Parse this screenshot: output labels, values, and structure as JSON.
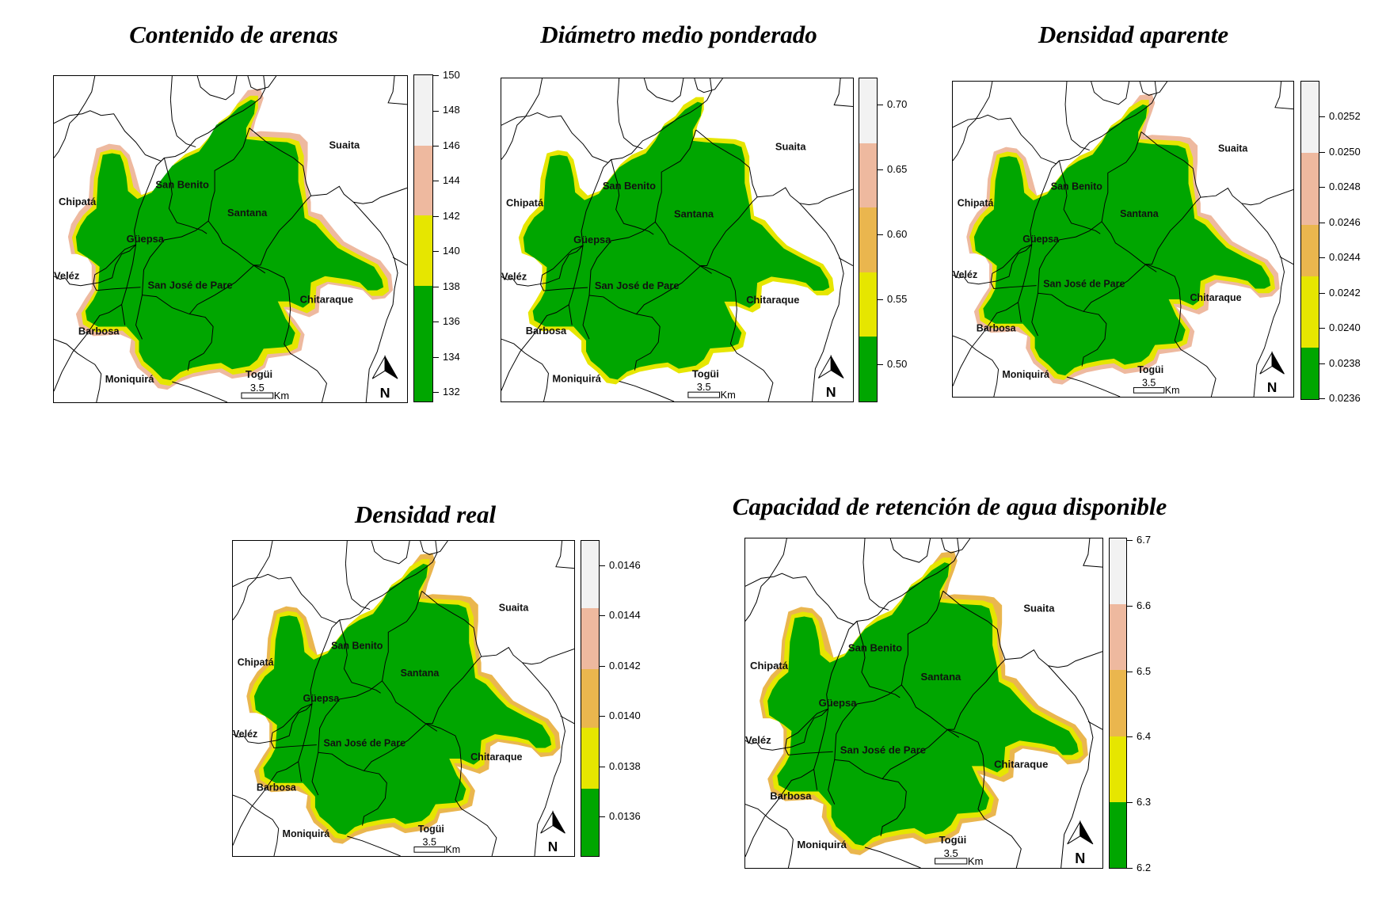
{
  "colors": {
    "green": "#00A600",
    "yellow": "#E6E600",
    "orange": "#EAB64E",
    "peach": "#EEB99F",
    "white": "#F2F2F2"
  },
  "panels": [
    {
      "title": "Contenido de arenas",
      "legend_classes": [
        "#F2F2F2",
        "#EEB99F",
        "#E6E600",
        "#00A600"
      ],
      "legend_weights": [
        2,
        2,
        2,
        3.3
      ],
      "ticks": [
        "150",
        "148",
        "146",
        "144",
        "142",
        "140",
        "138",
        "136",
        "134",
        "132"
      ]
    },
    {
      "title": "Diámetro medio ponderado",
      "legend_classes": [
        "#F2F2F2",
        "#EEB99F",
        "#EAB64E",
        "#E6E600",
        "#00A600"
      ],
      "legend_weights": [
        1,
        1,
        1,
        1,
        1
      ],
      "ticks": [
        "0.70",
        "0.65",
        "0.60",
        "0.55",
        "0.50"
      ]
    },
    {
      "title": "Densidad aparente",
      "legend_classes": [
        "#F2F2F2",
        "#EEB99F",
        "#EAB64E",
        "#E6E600",
        "#00A600"
      ],
      "legend_weights": [
        1,
        1,
        0.72,
        1,
        0.72
      ],
      "ticks": [
        "0.0252",
        "0.0250",
        "0.0248",
        "0.0246",
        "0.0244",
        "0.0242",
        "0.0240",
        "0.0238",
        "0.0236"
      ]
    },
    {
      "title": "Densidad real",
      "legend_classes": [
        "#F2F2F2",
        "#EEB99F",
        "#EAB64E",
        "#E6E600",
        "#00A600"
      ],
      "legend_weights": [
        1.1,
        1,
        0.95,
        1,
        1.1
      ],
      "ticks": [
        "0.0146",
        "0.0144",
        "0.0142",
        "0.0140",
        "0.0138",
        "0.0136"
      ]
    },
    {
      "title": "Capacidad de retención de agua disponible",
      "legend_classes": [
        "#F2F2F2",
        "#EEB99F",
        "#EAB64E",
        "#E6E600",
        "#00A600"
      ],
      "legend_weights": [
        1,
        1,
        1,
        1,
        1
      ],
      "ticks": [
        "6.7",
        "6.6",
        "6.5",
        "6.4",
        "6.3",
        "6.2"
      ]
    }
  ],
  "map_labels": {
    "suaita": "Suaita",
    "san_benito": "San Benito",
    "chipata": "Chipatá",
    "santana": "Santana",
    "guepsa": "Güepsa",
    "velez": "Veléz",
    "san_jose": "San José de Pare",
    "chitaraque": "Chitaraque",
    "barbosa": "Barbosa",
    "moniquira": "Moniquirá",
    "togui": "Togüi"
  },
  "scale_bar": {
    "value": "3.5",
    "unit": "Km"
  },
  "north_arrow": {
    "label": "N"
  },
  "chart_data": {
    "type": "heatmap",
    "description": "Five choropleth raster maps of soil properties over San José de Pare and neighboring municipalities",
    "maps": [
      {
        "title": "Contenido de arenas",
        "legend_breaks": [
          150,
          146,
          142,
          138
        ],
        "legend_range": [
          131,
          150
        ],
        "tick_labels": [
          150,
          148,
          146,
          144,
          142,
          140,
          138,
          136,
          134,
          132
        ],
        "classes": [
          {
            "range": [
              146,
              150
            ],
            "color": "#F2F2F2"
          },
          {
            "range": [
              142,
              146
            ],
            "color": "#EEB99F"
          },
          {
            "range": [
              138,
              142
            ],
            "color": "#E6E600"
          },
          {
            "range": [
              131,
              138
            ],
            "color": "#00A600"
          }
        ]
      },
      {
        "title": "Diámetro medio ponderado",
        "legend_range": [
          0.47,
          0.72
        ],
        "tick_labels": [
          0.7,
          0.65,
          0.6,
          0.55,
          0.5
        ],
        "classes": [
          {
            "range": [
              0.67,
              0.72
            ],
            "color": "#F2F2F2"
          },
          {
            "range": [
              0.62,
              0.67
            ],
            "color": "#EEB99F"
          },
          {
            "range": [
              0.57,
              0.62
            ],
            "color": "#EAB64E"
          },
          {
            "range": [
              0.52,
              0.57
            ],
            "color": "#E6E600"
          },
          {
            "range": [
              0.47,
              0.52
            ],
            "color": "#00A600"
          }
        ]
      },
      {
        "title": "Densidad aparente",
        "legend_range": [
          0.0236,
          0.0254
        ],
        "tick_labels": [
          0.0252,
          0.025,
          0.0248,
          0.0246,
          0.0244,
          0.0242,
          0.024,
          0.0238,
          0.0236
        ],
        "classes": [
          {
            "range": [
              0.025,
              0.0254
            ],
            "color": "#F2F2F2"
          },
          {
            "range": [
              0.0246,
              0.025
            ],
            "color": "#EEB99F"
          },
          {
            "range": [
              0.02431,
              0.0246
            ],
            "color": "#EAB64E"
          },
          {
            "range": [
              0.0239,
              0.02431
            ],
            "color": "#E6E600"
          },
          {
            "range": [
              0.0236,
              0.0239
            ],
            "color": "#00A600"
          }
        ]
      },
      {
        "title": "Densidad real",
        "legend_range": [
          0.01347,
          0.01471
        ],
        "tick_labels": [
          0.0146,
          0.0144,
          0.0142,
          0.014,
          0.0138,
          0.0136
        ],
        "classes": [
          {
            "range": [
              0.01445,
              0.01471
            ],
            "color": "#F2F2F2"
          },
          {
            "range": [
              0.0142,
              0.01445
            ],
            "color": "#EEB99F"
          },
          {
            "range": [
              0.01396,
              0.0142
            ],
            "color": "#EAB64E"
          },
          {
            "range": [
              0.01371,
              0.01396
            ],
            "color": "#E6E600"
          },
          {
            "range": [
              0.01347,
              0.01371
            ],
            "color": "#00A600"
          }
        ]
      },
      {
        "title": "Capacidad de retención de agua disponible",
        "legend_range": [
          6.2,
          6.7
        ],
        "tick_labels": [
          6.7,
          6.6,
          6.5,
          6.4,
          6.3,
          6.2
        ],
        "classes": [
          {
            "range": [
              6.6,
              6.7
            ],
            "color": "#F2F2F2"
          },
          {
            "range": [
              6.5,
              6.6
            ],
            "color": "#EEB99F"
          },
          {
            "range": [
              6.4,
              6.5
            ],
            "color": "#EAB64E"
          },
          {
            "range": [
              6.3,
              6.4
            ],
            "color": "#E6E600"
          },
          {
            "range": [
              6.2,
              6.3
            ],
            "color": "#00A600"
          }
        ]
      }
    ],
    "municipalities": [
      "Suaita",
      "San Benito",
      "Chipatá",
      "Santana",
      "Güepsa",
      "Veléz",
      "San José de Pare",
      "Chitaraque",
      "Barbosa",
      "Moniquirá",
      "Togüi"
    ],
    "scale_bar": "3.5 Km"
  }
}
